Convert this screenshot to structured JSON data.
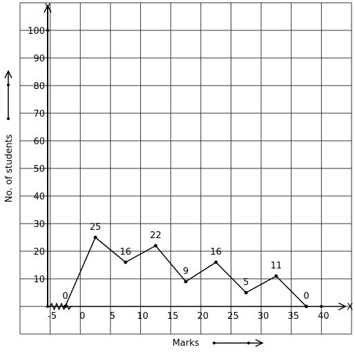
{
  "chart_data": {
    "type": "line",
    "title": "",
    "xlabel": "Marks",
    "ylabel": "No. of students",
    "x_axis_letter": "X",
    "y_axis_letter": "Y",
    "grid": true,
    "xlim": [
      -10,
      45
    ],
    "ylim": [
      -10,
      110
    ],
    "x_tick_values": [
      -5,
      0,
      5,
      10,
      15,
      20,
      25,
      30,
      35,
      40
    ],
    "x_tick_labels": [
      "-5",
      "0",
      "5",
      "10",
      "15",
      "20",
      "25",
      "30",
      "35",
      "40"
    ],
    "y_tick_values": [
      10,
      20,
      30,
      40,
      50,
      60,
      70,
      80,
      90,
      100
    ],
    "y_tick_labels": [
      "10",
      "20",
      "30",
      "40",
      "50",
      "60",
      "70",
      "80",
      "90",
      "100"
    ],
    "series": [
      {
        "x": [
          -2.5,
          2.5,
          7.5,
          12.5,
          17.5,
          22.5,
          27.5,
          32.5,
          37.5
        ],
        "values": [
          0,
          25,
          16,
          22,
          9,
          16,
          5,
          11,
          0
        ],
        "labels": [
          "0",
          "25",
          "16",
          "22",
          "9",
          "16",
          "5",
          "11",
          "0"
        ]
      }
    ]
  }
}
